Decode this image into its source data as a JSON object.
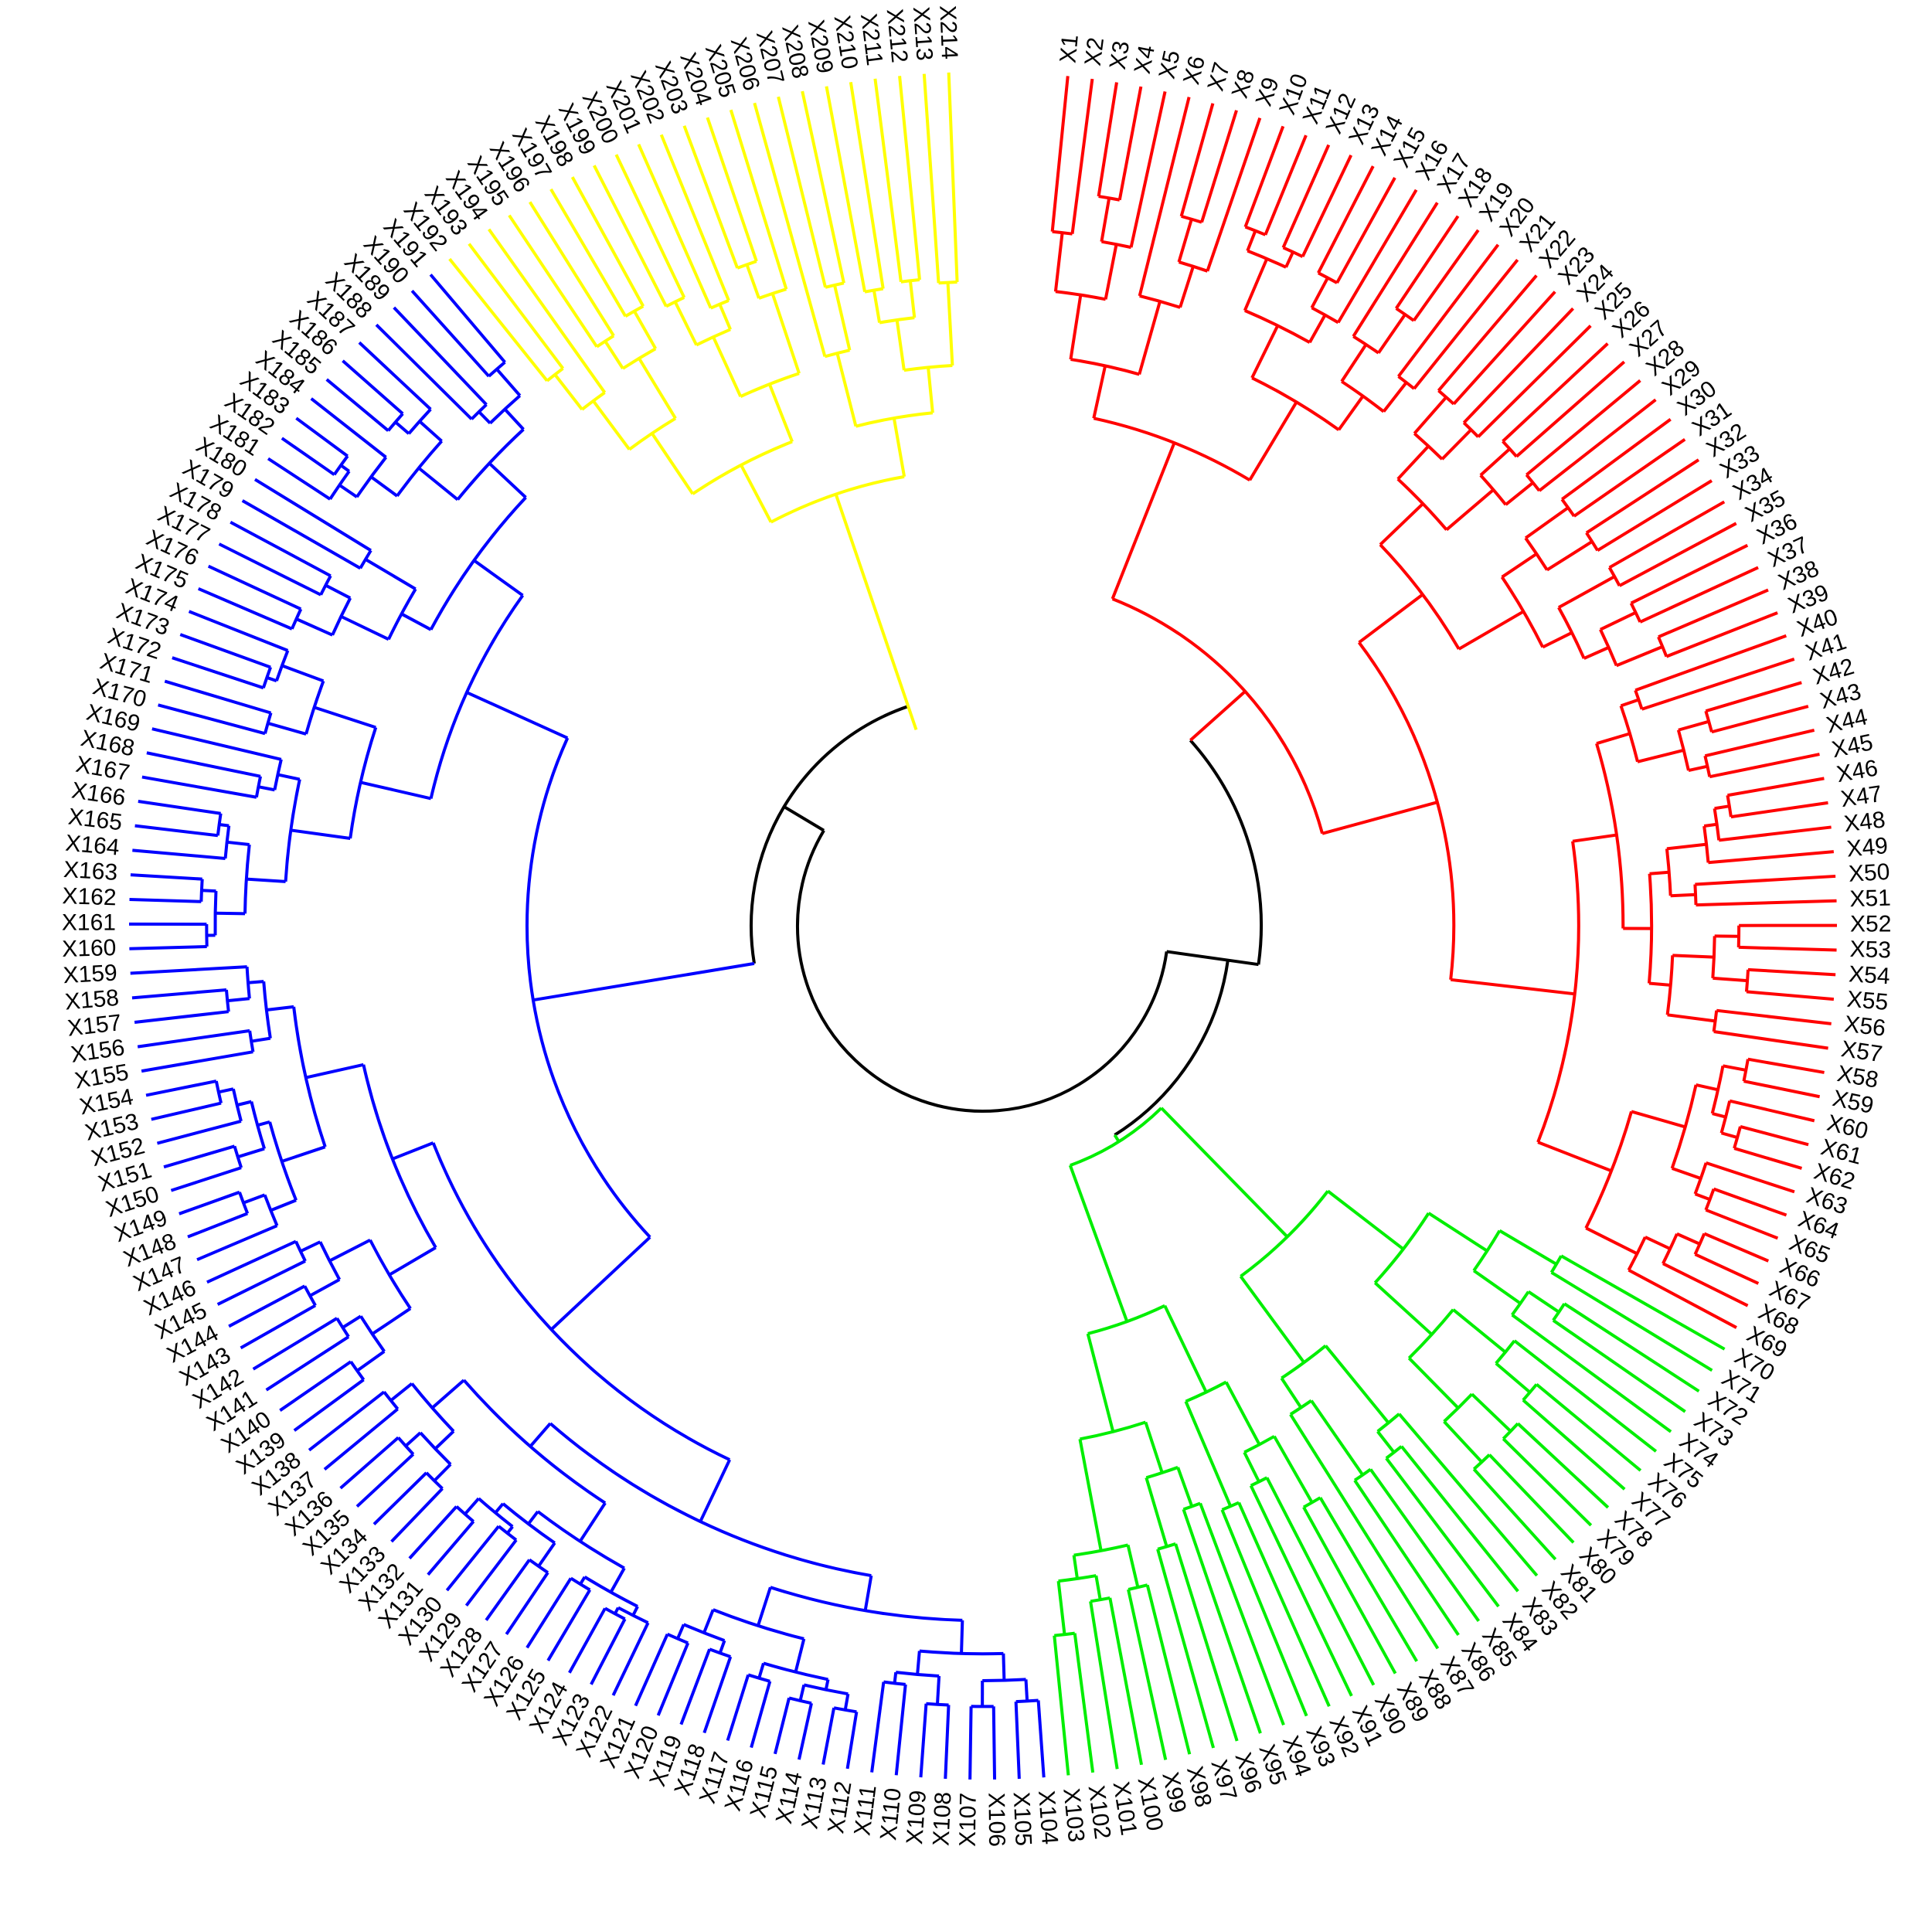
{
  "diagram": {
    "type": "circular-dendrogram",
    "leaf_prefix": "X",
    "leaf_count": 214,
    "root_color": "#000000",
    "clusters": [
      {
        "id": "red",
        "color": "#ff0000",
        "range": [
          1,
          69
        ]
      },
      {
        "id": "green",
        "color": "#00ee00",
        "range": [
          70,
          103
        ]
      },
      {
        "id": "blue",
        "color": "#0000ff",
        "range": [
          104,
          191
        ]
      },
      {
        "id": "yellow",
        "color": "#ffff00",
        "range": [
          192,
          214
        ]
      }
    ]
  }
}
